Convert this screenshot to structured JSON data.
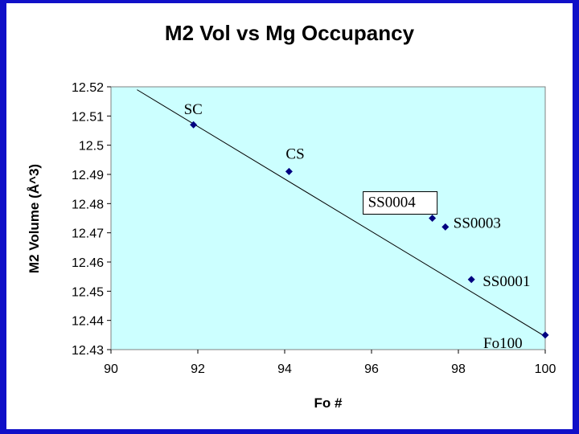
{
  "chart_data": {
    "type": "scatter",
    "title": "M2 Vol vs Mg Occupancy",
    "xlabel": "Fo #",
    "ylabel": "M2 Volume (Å^3)",
    "xlim": [
      90,
      100
    ],
    "ylim": [
      12.43,
      12.52
    ],
    "x_ticks": [
      "90",
      "92",
      "94",
      "96",
      "98",
      "100"
    ],
    "y_ticks": [
      "12.43",
      "12.44",
      "12.45",
      "12.46",
      "12.47",
      "12.48",
      "12.49",
      "12.5",
      "12.51",
      "12.52"
    ],
    "grid": false,
    "plot_background": "#ccffff",
    "marker_color": "#000080",
    "points": [
      {
        "x": 91.9,
        "y": 12.507,
        "label": "SC"
      },
      {
        "x": 94.1,
        "y": 12.491,
        "label": "CS"
      },
      {
        "x": 97.4,
        "y": 12.475,
        "label": "SS0004",
        "boxed": true
      },
      {
        "x": 97.7,
        "y": 12.472,
        "label": "SS0003"
      },
      {
        "x": 98.3,
        "y": 12.454,
        "label": "SS0001"
      },
      {
        "x": 100,
        "y": 12.435,
        "label": "Fo100"
      }
    ],
    "trendline": {
      "x": [
        90.6,
        100
      ],
      "y": [
        12.519,
        12.4345
      ]
    }
  }
}
